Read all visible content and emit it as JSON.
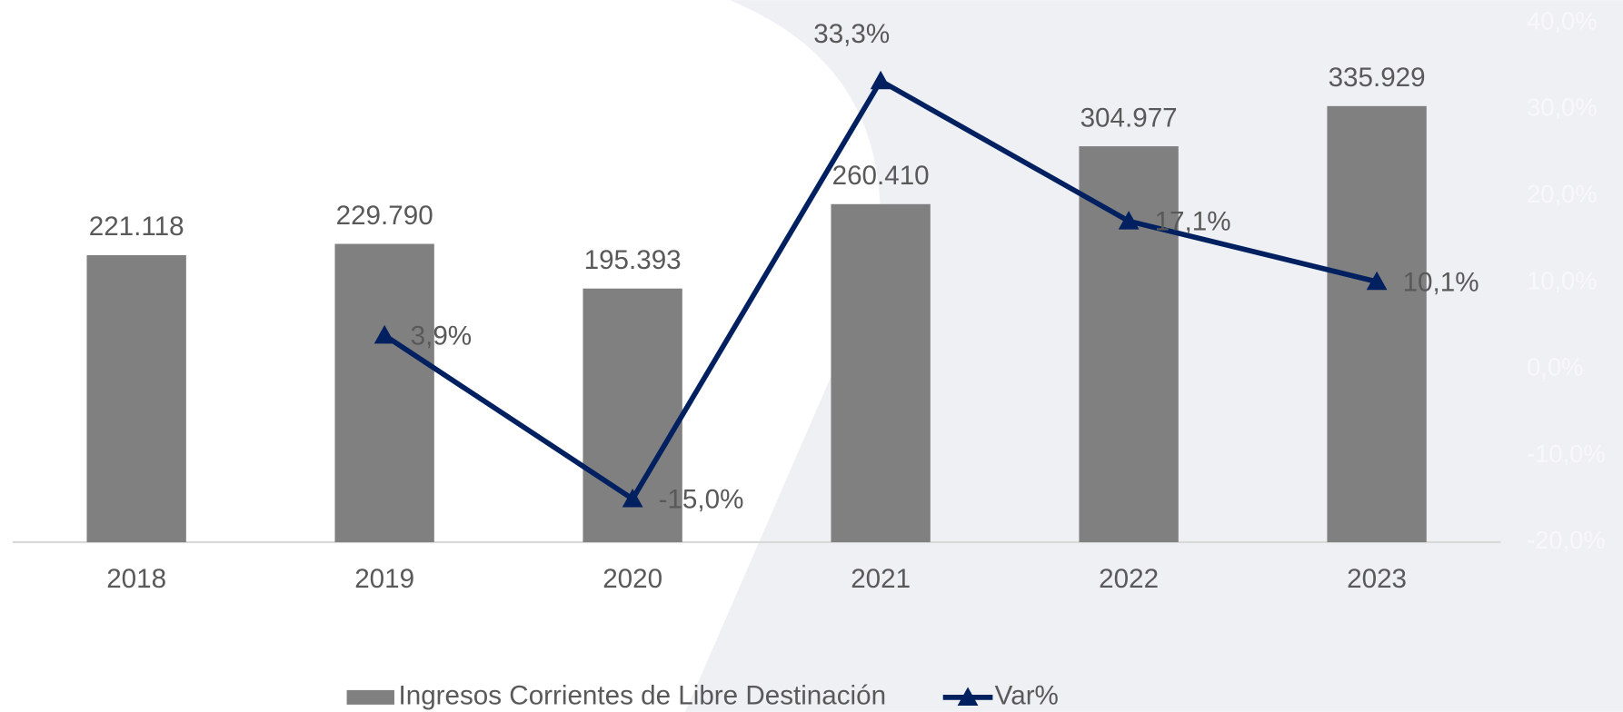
{
  "chart_data": {
    "type": "bar-line",
    "categories": [
      "2018",
      "2019",
      "2020",
      "2021",
      "2022",
      "2023"
    ],
    "series": [
      {
        "name": "Ingresos Corrientes de Libre Destinación",
        "type": "bar",
        "color": "#808080",
        "values": [
          221118,
          229790,
          195393,
          260410,
          304977,
          335929
        ],
        "value_labels": [
          "221.118",
          "229.790",
          "195.393",
          "260.410",
          "304.977",
          "335.929"
        ]
      },
      {
        "name": "Var%",
        "type": "line",
        "color": "#002060",
        "axis": "y2",
        "marker": "triangle",
        "values": [
          null,
          3.9,
          -15.0,
          33.3,
          17.1,
          10.1
        ],
        "value_labels": [
          null,
          "3,9%",
          "-15,0%",
          "33,3%",
          "17,1%",
          "10,1%"
        ]
      }
    ],
    "ylim": [
      0,
      400000
    ],
    "y2lim": [
      -20,
      40
    ],
    "y2ticks": [
      {
        "value": -20,
        "label": "-20,0%"
      },
      {
        "value": -10,
        "label": "-10,0%"
      },
      {
        "value": 0,
        "label": "0,0%"
      },
      {
        "value": 10,
        "label": "10,0%"
      },
      {
        "value": 20,
        "label": "20,0%"
      },
      {
        "value": 30,
        "label": "30,0%"
      },
      {
        "value": 40,
        "label": "40,0%"
      }
    ],
    "legend": "bottom"
  }
}
